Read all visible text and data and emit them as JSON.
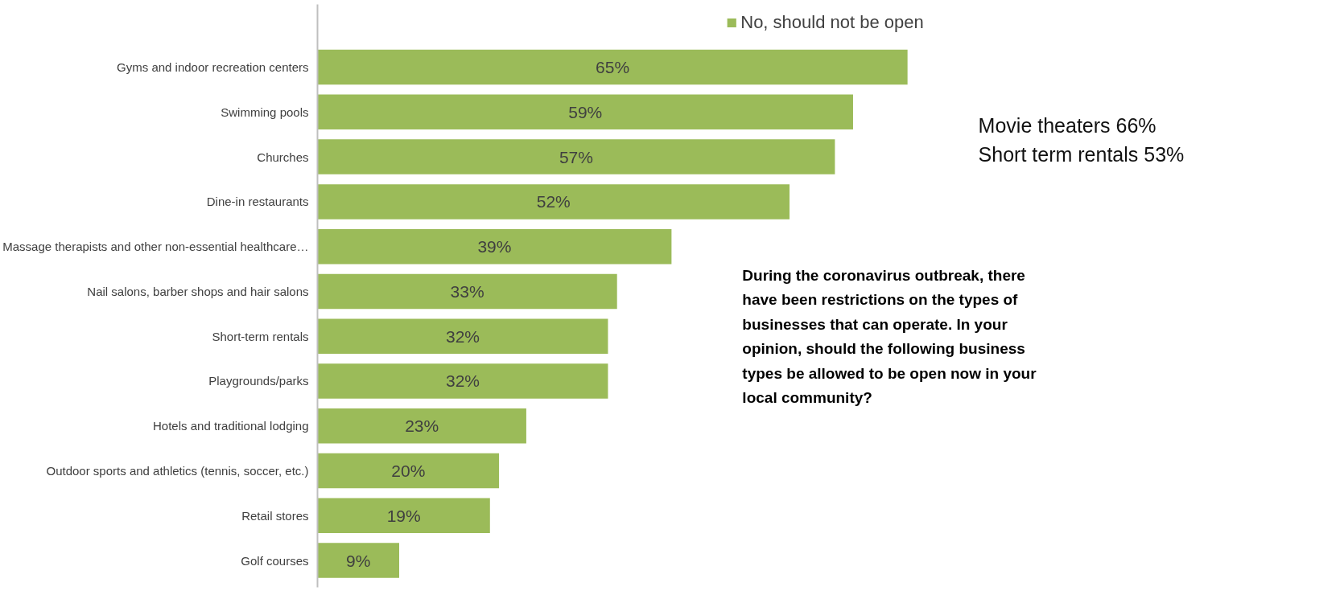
{
  "chart_data": {
    "type": "bar",
    "orientation": "horizontal",
    "legend": "top",
    "grid": false,
    "categories": [
      "Gyms and indoor recreation centers",
      "Swimming pools",
      "Churches",
      "Dine-in restaurants",
      "Massage therapists and other non-essential healthcare…",
      "Nail salons, barber shops and hair salons",
      "Short-term rentals",
      "Playgrounds/parks",
      "Hotels and traditional lodging",
      "Outdoor sports and athletics (tennis, soccer, etc.)",
      "Retail stores",
      "Golf courses"
    ],
    "series": [
      {
        "name": "No, should not be open",
        "color": "#9bbb59",
        "values": [
          65,
          59,
          57,
          52,
          39,
          33,
          32,
          32,
          23,
          20,
          19,
          9
        ],
        "value_labels": [
          "65%",
          "59%",
          "57%",
          "52%",
          "39%",
          "33%",
          "32%",
          "32%",
          "23%",
          "20%",
          "19%",
          "9%"
        ]
      }
    ],
    "annotations": [
      "Movie theaters 66%",
      "Short term rentals 53%",
      "During the coronavirus outbreak, there have been restrictions on the types of businesses that can operate. In your opinion, should the following business types be allowed to be open now in your local community?"
    ]
  }
}
